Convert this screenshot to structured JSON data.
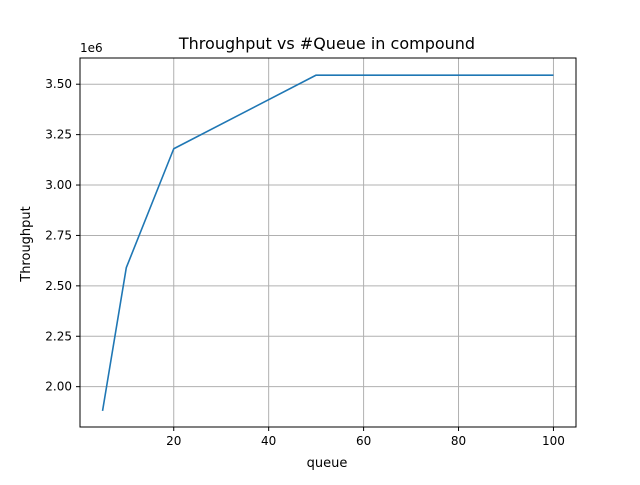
{
  "chart_data": {
    "type": "line",
    "title": "Throughput vs #Queue in compound",
    "xlabel": "queue",
    "ylabel": "Throughput",
    "y_offset_label": "1e6",
    "y_scale": 1000000,
    "xlim": [
      0.25,
      104.75
    ],
    "ylim": [
      1800000,
      3630000
    ],
    "xticks": [
      20,
      40,
      60,
      80,
      100
    ],
    "xtick_labels": [
      "20",
      "40",
      "60",
      "80",
      "100"
    ],
    "yticks": [
      2000000,
      2250000,
      2500000,
      2750000,
      3000000,
      3250000,
      3500000
    ],
    "ytick_labels": [
      "2.00",
      "2.25",
      "2.50",
      "2.75",
      "3.00",
      "3.25",
      "3.50"
    ],
    "grid": true,
    "series": [
      {
        "color": "#1f77b4",
        "x": [
          5,
          10,
          20,
          50,
          100
        ],
        "y": [
          1880000,
          2590000,
          3180000,
          3545000,
          3545000
        ]
      }
    ]
  }
}
